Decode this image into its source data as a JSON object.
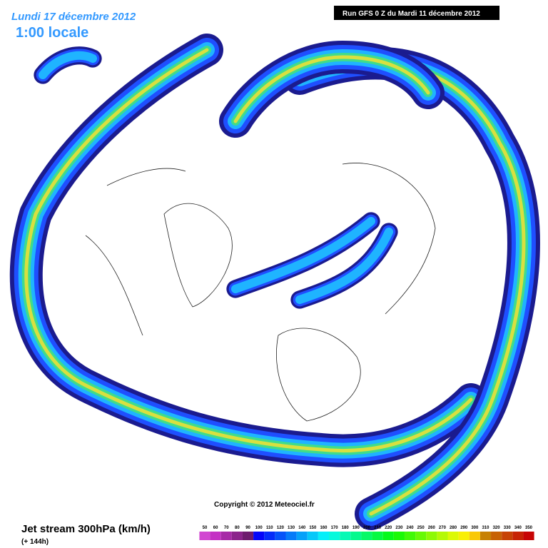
{
  "header": {
    "date": "Lundi 17 décembre 2012",
    "time": "1:00 locale",
    "run": "Run GFS 0 Z du Mardi 11 décembre 2012"
  },
  "copyright": "Copyright © 2012 Meteociel.fr",
  "footer": {
    "title": "Jet stream 300hPa (km/h)",
    "lead": "(+ 144h)"
  },
  "legend": {
    "scale": [
      50,
      60,
      70,
      80,
      90,
      100,
      110,
      120,
      130,
      140,
      150,
      160,
      170,
      180,
      190,
      200,
      210,
      220,
      230,
      240,
      250,
      260,
      270,
      280,
      290,
      300,
      310,
      320,
      330,
      340,
      350
    ]
  }
}
